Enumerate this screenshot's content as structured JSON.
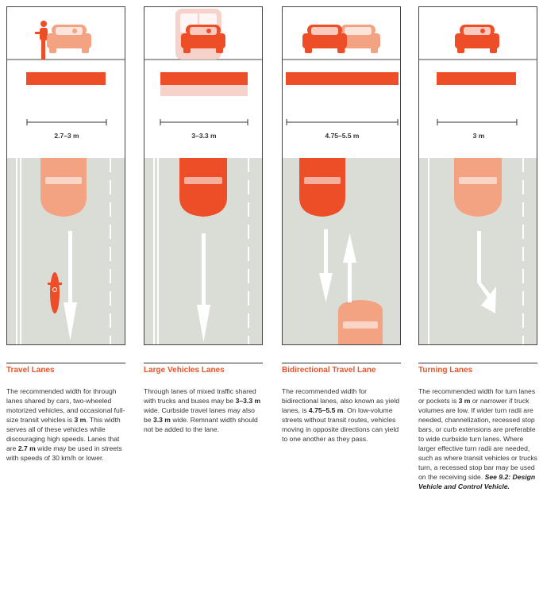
{
  "colors": {
    "orange": "#ee4e27",
    "salmon": "#f3a382",
    "pale": "#f6d2ca",
    "road": "#dadcd6",
    "white": "#ffffff"
  },
  "panels": [
    {
      "title": "Travel Lanes",
      "width_label": "2.7–3 m",
      "top_icons": [
        "cyclist-icon",
        "car-icon"
      ],
      "road_vehicles": [
        "car-icon",
        "motorcycle-icon"
      ],
      "arrows": [
        "straight-arrow"
      ],
      "body": [
        {
          "t": "The recommended width for through lanes shared by cars, two-wheeled motorized vehicles, and occasional full-size transit vehicles is "
        },
        {
          "t": "3 m",
          "b": true
        },
        {
          "t": ". This width serves all of these vehicles while discouraging high speeds. Lanes that are "
        },
        {
          "t": "2.7 m",
          "b": true
        },
        {
          "t": " wide may be used in streets with speeds of 30 km/h or lower."
        }
      ]
    },
    {
      "title": "Large Vehicles Lanes",
      "width_label": "3–3.3 m",
      "top_icons": [
        "bus-icon",
        "car-icon"
      ],
      "road_vehicles": [
        "car-icon"
      ],
      "arrows": [
        "straight-arrow"
      ],
      "body": [
        {
          "t": "Through lanes of mixed traffic shared with trucks and buses may be "
        },
        {
          "t": "3–3.3 m",
          "b": true
        },
        {
          "t": " wide. Curbside travel lanes may also be "
        },
        {
          "t": "3.3 m",
          "b": true
        },
        {
          "t": " wide. Remnant width should not be added to the lane."
        }
      ]
    },
    {
      "title": "Bidirectional Travel Lane",
      "width_label": "4.75–5.5 m",
      "top_icons": [
        "car-icon",
        "car-icon"
      ],
      "road_vehicles": [
        "car-icon",
        "car-icon"
      ],
      "arrows": [
        "down-arrow",
        "up-arrow"
      ],
      "body": [
        {
          "t": "The recommended width for bidirectional lanes, also known as yield lanes, is "
        },
        {
          "t": "4.75–5.5 m",
          "b": true
        },
        {
          "t": ". On low-volume streets without transit routes, vehicles moving in opposite directions can yield to one another as they pass."
        }
      ]
    },
    {
      "title": "Turning Lanes",
      "width_label": "3 m",
      "top_icons": [
        "car-icon"
      ],
      "road_vehicles": [
        "car-icon"
      ],
      "arrows": [
        "right-turn-arrow"
      ],
      "body": [
        {
          "t": "The recommended width for turn lanes or pockets is "
        },
        {
          "t": "3 m",
          "b": true
        },
        {
          "t": " or narrower if truck volumes are low. If wider turn radii are needed, channelization, recessed stop bars, or curb extensions are preferable to wide curbside turn lanes. Where larger effective turn radii are needed, such as where transit vehicles or trucks turn, a recessed stop bar may be used on the receiving side. "
        },
        {
          "t": "See 9.2: Design Vehicle and Control Vehicle.",
          "b": true,
          "i": true
        }
      ]
    }
  ]
}
